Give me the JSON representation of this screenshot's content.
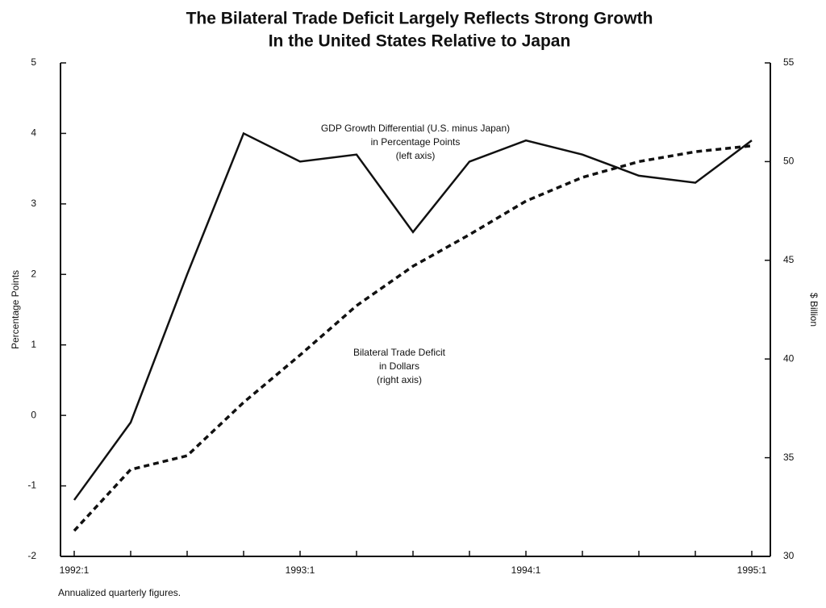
{
  "chart_data": {
    "type": "line",
    "title": [
      "The Bilateral Trade Deficit Largely Reflects Strong Growth",
      "In the United States Relative to Japan"
    ],
    "ylabel": "Percentage Points",
    "y2label": "$ Billion",
    "footnote": "Annualized quarterly figures.",
    "categories": [
      "1992:1",
      null,
      null,
      null,
      "1993:1",
      null,
      null,
      null,
      "1994:1",
      null,
      null,
      null,
      "1995:1"
    ],
    "series": [
      {
        "name": "GDP Growth Differential",
        "color": "#111111",
        "linestyle": "solid",
        "axis": "y",
        "values": [
          -1.2,
          -0.1,
          2.0,
          4.0,
          3.6,
          3.7,
          2.6,
          3.6,
          3.9,
          3.7,
          3.4,
          3.3,
          3.9
        ]
      },
      {
        "name": "Bilateral Trade Deficit",
        "color": "#111111",
        "linestyle": "dashed",
        "axis": "y2",
        "values": [
          31.3,
          34.4,
          35.1,
          37.8,
          40.2,
          42.7,
          44.7,
          46.3,
          48.0,
          49.2,
          50.0,
          50.5,
          50.8
        ]
      }
    ],
    "annotations": [
      {
        "lines": [
          "GDP Growth Differential (U.S. minus Japan)",
          "in Percentage Points",
          "(left axis)"
        ]
      },
      {
        "lines": [
          "Bilateral Trade Deficit",
          "in Dollars",
          "(right axis)"
        ]
      }
    ],
    "ylim": [
      -2,
      5
    ],
    "yticks": [
      -2,
      -1,
      0,
      1,
      2,
      3,
      4,
      5
    ],
    "y2lim": [
      30,
      55
    ],
    "y2ticks": [
      30,
      35,
      40,
      45,
      50,
      55
    ]
  }
}
